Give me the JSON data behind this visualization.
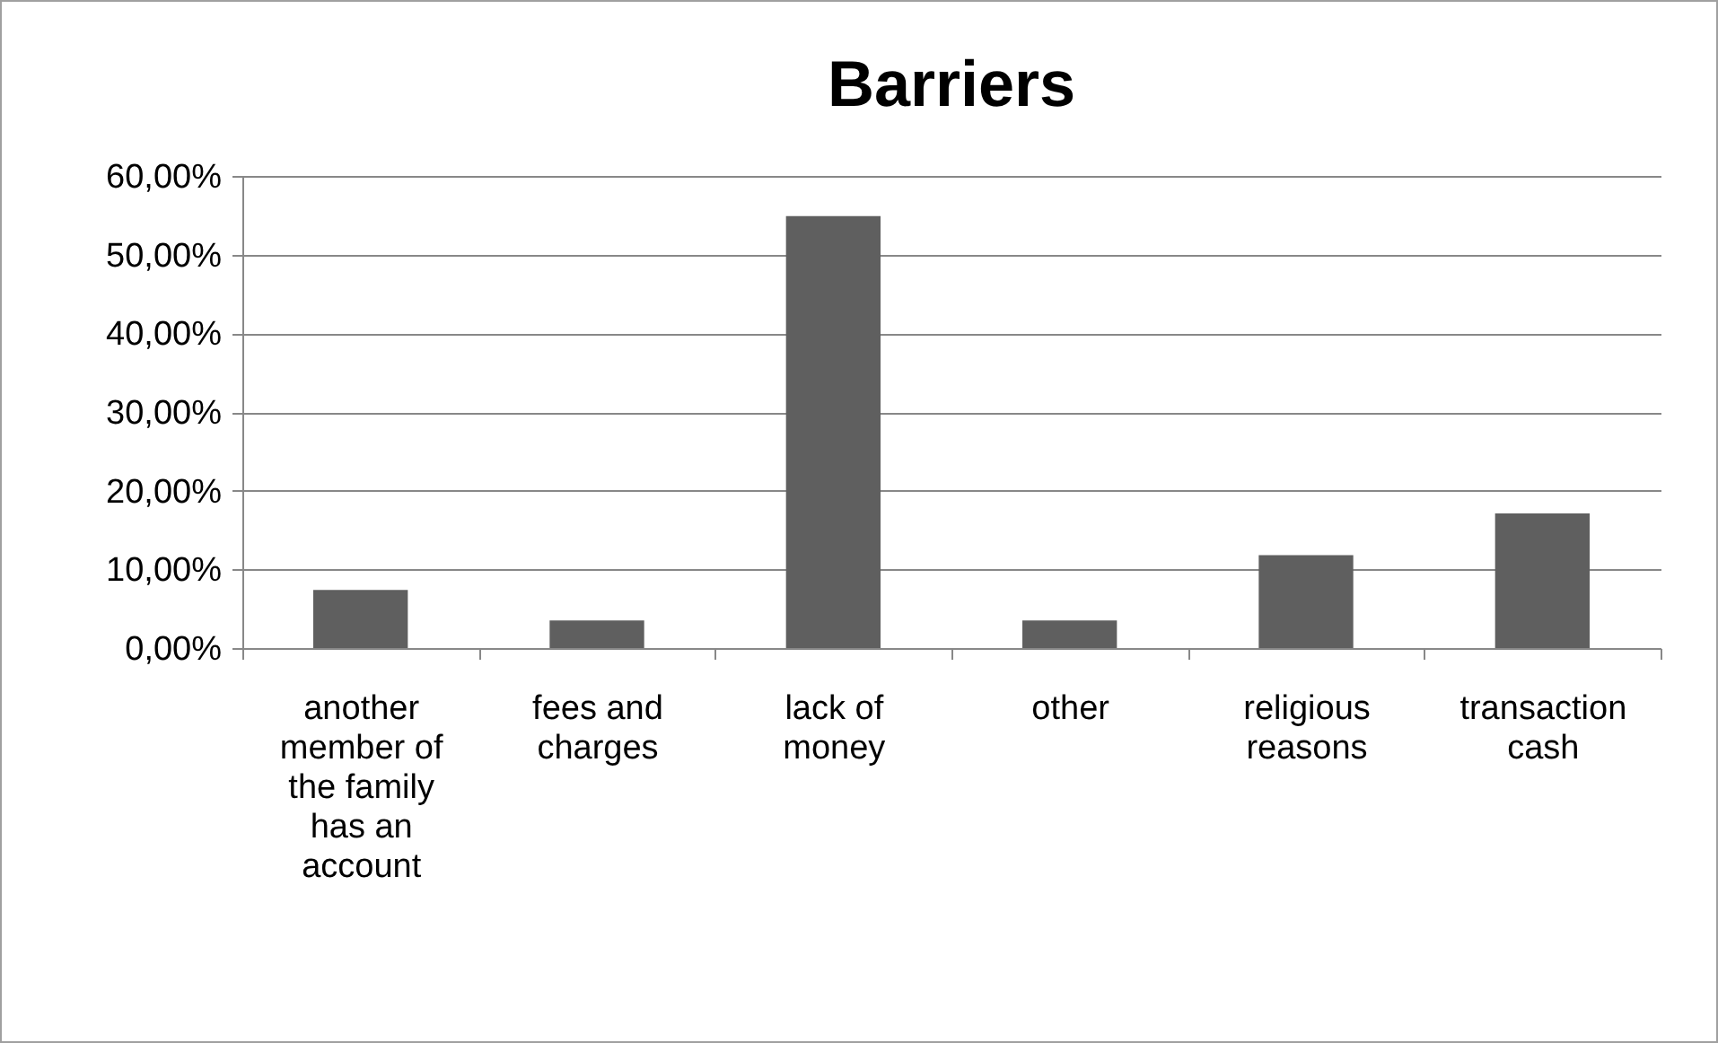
{
  "chart_data": {
    "type": "bar",
    "title": "Barriers",
    "categories": [
      "another member of the family has an account",
      "fees and charges",
      "lack of money",
      "other",
      "religious reasons",
      "transaction cash"
    ],
    "values": [
      7.4,
      3.5,
      54.9,
      3.5,
      11.8,
      17.1
    ],
    "color": "#5f5f5f",
    "ylim": [
      0,
      60
    ],
    "yticks": [
      {
        "value": 0,
        "label": "0,00%"
      },
      {
        "value": 10,
        "label": "10,00%"
      },
      {
        "value": 20,
        "label": "20,00%"
      },
      {
        "value": 30,
        "label": "30,00%"
      },
      {
        "value": 40,
        "label": "40,00%"
      },
      {
        "value": 50,
        "label": "50,00%"
      },
      {
        "value": 60,
        "label": "60,00%"
      }
    ],
    "grid": "y"
  }
}
